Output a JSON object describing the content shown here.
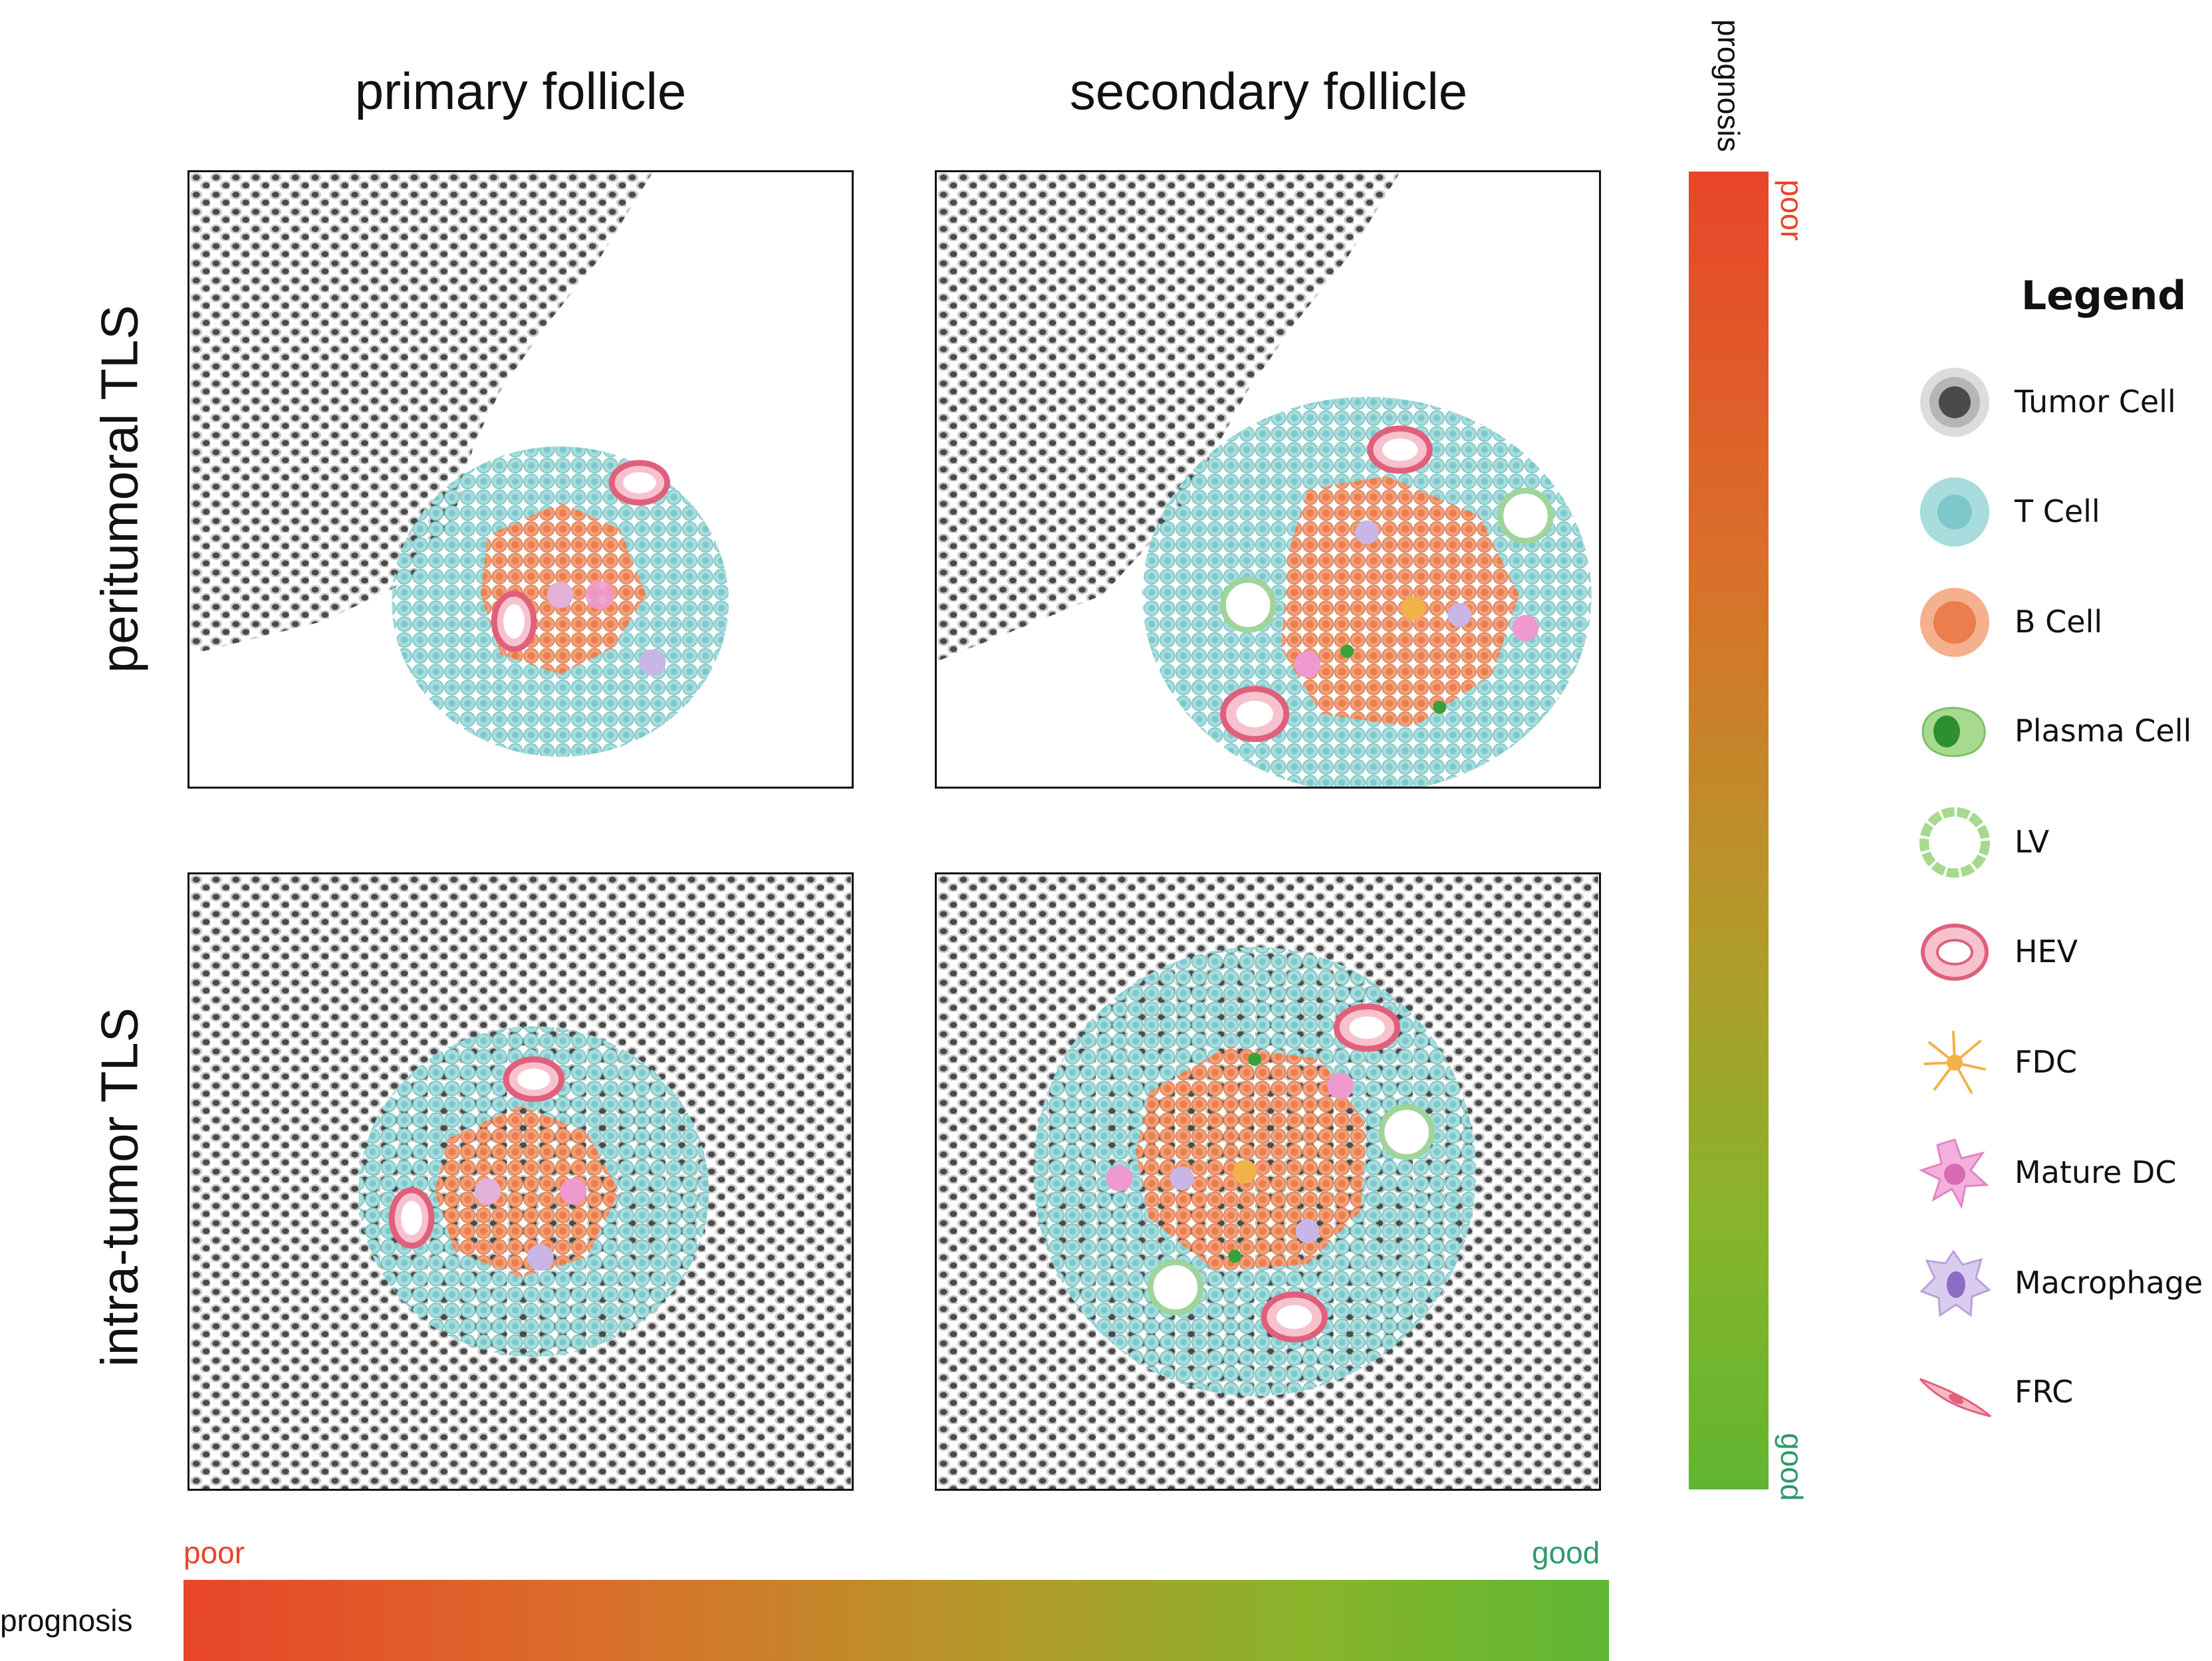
{
  "columns": {
    "primary": "primary follicle",
    "secondary": "secondary follicle"
  },
  "rows": {
    "peritumoral": "peritumoral TLS",
    "intratumor": "intra-tumor  TLS"
  },
  "prognosis_vertical": {
    "title": "prognosis",
    "top_label": "poor",
    "bottom_label": "good"
  },
  "prognosis_horizontal": {
    "title": "prognosis",
    "left_label": "poor",
    "right_label": "good"
  },
  "colors": {
    "poor": "#e8452a",
    "good": "#2e9a6a",
    "tumor_cell": "#4a4a4a",
    "t_cell": "#8fd0d2",
    "b_cell": "#ef8a5a",
    "plasma_cell": "#3aa03a",
    "lv": "#9fd49a",
    "hev": "#e86a82",
    "fdc": "#f2b24a",
    "mature_dc": "#ee9ad0",
    "macrophage": "#b9a2dc",
    "frc": "#f08aa0"
  },
  "legend": {
    "title": "Legend",
    "items": [
      {
        "label": "Tumor Cell",
        "icon": "tumor-cell-icon"
      },
      {
        "label": "T Cell",
        "icon": "t-cell-icon"
      },
      {
        "label": "B Cell",
        "icon": "b-cell-icon"
      },
      {
        "label": "Plasma Cell",
        "icon": "plasma-cell-icon"
      },
      {
        "label": "LV",
        "icon": "lv-icon"
      },
      {
        "label": "HEV",
        "icon": "hev-icon"
      },
      {
        "label": "FDC",
        "icon": "fdc-icon"
      },
      {
        "label": "Mature DC",
        "icon": "mature-dc-icon"
      },
      {
        "label": "Macrophage",
        "icon": "macrophage-icon"
      },
      {
        "label": "FRC",
        "icon": "frc-icon"
      }
    ]
  }
}
